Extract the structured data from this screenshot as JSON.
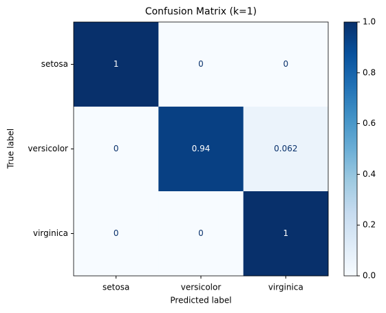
{
  "chart_data": {
    "type": "heatmap",
    "title": "Confusion Matrix (k=1)",
    "xlabel": "Predicted label",
    "ylabel": "True label",
    "x_categories": [
      "setosa",
      "versicolor",
      "virginica"
    ],
    "y_categories": [
      "setosa",
      "versicolor",
      "virginica"
    ],
    "values": [
      [
        1,
        0,
        0
      ],
      [
        0,
        0.94,
        0.062
      ],
      [
        0,
        0,
        1
      ]
    ],
    "colormap": [
      "#f7fbff",
      "#deebf7",
      "#c6dbef",
      "#9ecae1",
      "#6baed6",
      "#4292c6",
      "#2171b5",
      "#08519c",
      "#08306b"
    ],
    "clim": [
      0,
      1
    ],
    "cticks": [
      {
        "value": 0,
        "label": "0.0"
      },
      0.2,
      0.4,
      0.6,
      0.8,
      {
        "value": 1,
        "label": "1.0"
      }
    ]
  }
}
